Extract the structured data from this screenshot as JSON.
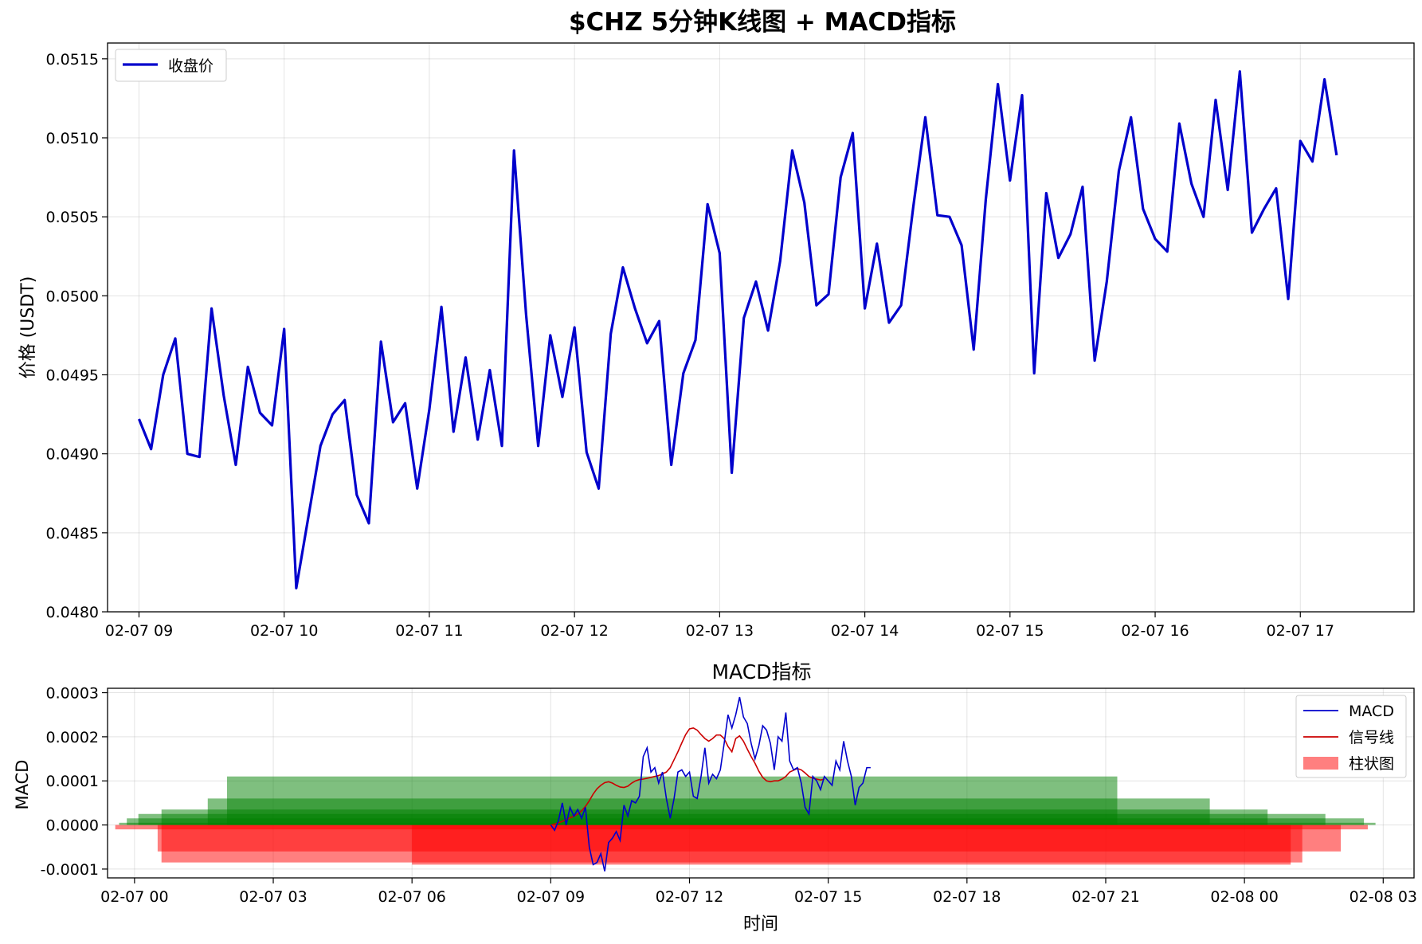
{
  "figure": {
    "title": "$CHZ 5分钟K线图 + MACD指标"
  },
  "chart_data": [
    {
      "type": "line",
      "title": "$CHZ 5分钟K线图 + MACD指标",
      "xlabel": "",
      "ylabel": "价格 (USDT)",
      "x_range": [
        "02-07 08:47",
        "02-07 17:47"
      ],
      "ylim": [
        0.048,
        0.0516
      ],
      "y_ticks": [
        "0.0480",
        "0.0485",
        "0.0490",
        "0.0495",
        "0.0500",
        "0.0505",
        "0.0510",
        "0.0515"
      ],
      "x_ticks": [
        "02-07 09",
        "02-07 10",
        "02-07 11",
        "02-07 12",
        "02-07 13",
        "02-07 14",
        "02-07 15",
        "02-07 16",
        "02-07 17"
      ],
      "grid": true,
      "legend_position": "top-left",
      "x_interval_minutes": 5,
      "x_start": "02-07 09:00",
      "series": [
        {
          "name": "收盘价",
          "color": "#0000cc",
          "values": [
            0.04922,
            0.04903,
            0.0495,
            0.04973,
            0.049,
            0.04898,
            0.04992,
            0.04937,
            0.04893,
            0.04955,
            0.04926,
            0.04918,
            0.04979,
            0.04815,
            0.0486,
            0.04905,
            0.04925,
            0.04934,
            0.04874,
            0.04856,
            0.04971,
            0.0492,
            0.04932,
            0.04878,
            0.04928,
            0.04993,
            0.04914,
            0.04961,
            0.04909,
            0.04953,
            0.04905,
            0.05092,
            0.04988,
            0.04905,
            0.04975,
            0.04936,
            0.0498,
            0.04901,
            0.04878,
            0.04976,
            0.05018,
            0.04992,
            0.0497,
            0.04984,
            0.04893,
            0.04951,
            0.04972,
            0.05058,
            0.05027,
            0.04888,
            0.04986,
            0.05009,
            0.04978,
            0.05022,
            0.05092,
            0.05059,
            0.04994,
            0.05001,
            0.05075,
            0.05103,
            0.04992,
            0.05033,
            0.04983,
            0.04994,
            0.05056,
            0.05113,
            0.05051,
            0.0505,
            0.05032,
            0.04966,
            0.05061,
            0.05134,
            0.05073,
            0.05127,
            0.04951,
            0.05065,
            0.05024,
            0.05039,
            0.05069,
            0.04959,
            0.05009,
            0.05079,
            0.05113,
            0.05055,
            0.05036,
            0.05028,
            0.05109,
            0.05071,
            0.0505,
            0.05124,
            0.05067,
            0.05142,
            0.0504,
            0.05055,
            0.05068,
            0.04998,
            0.05098,
            0.05085,
            0.05137,
            0.05089
          ]
        }
      ]
    },
    {
      "type": "line",
      "title": "MACD指标",
      "xlabel": "时间",
      "ylabel": "MACD",
      "x_range": [
        "02-06 23:25",
        "02-08 03:40"
      ],
      "ylim": [
        -0.00012,
        0.00031
      ],
      "y_ticks": [
        "-0.0001",
        "0.0000",
        "0.0001",
        "0.0002",
        "0.0003"
      ],
      "x_ticks": [
        "02-07 00",
        "02-07 03",
        "02-07 06",
        "02-07 09",
        "02-07 12",
        "02-07 15",
        "02-07 18",
        "02-07 21",
        "02-08 00",
        "02-08 03"
      ],
      "grid": true,
      "legend_position": "top-right",
      "x_interval_minutes": 5,
      "x_start": "02-07 09:00",
      "series": [
        {
          "name": "MACD",
          "color": "#0000cc",
          "values": [
            0.0,
            -1.2e-05,
            1e-05,
            5e-05,
            0.0,
            4e-05,
            2e-05,
            3.5e-05,
            1.5e-05,
            4e-05,
            -5e-05,
            -9e-05,
            -8.5e-05,
            -6.5e-05,
            -0.000105,
            -4e-05,
            -3e-05,
            -1.5e-05,
            -3.5e-05,
            4.5e-05,
            2e-05,
            5.5e-05,
            5e-05,
            6.5e-05,
            0.000155,
            0.000175,
            0.00012,
            0.00013,
            9.5e-05,
            0.00012,
            6e-05,
            1.5e-05,
            6e-05,
            0.00012,
            0.000125,
            0.00011,
            0.00012,
            6.5e-05,
            6e-05,
            0.00011,
            0.000175,
            9.5e-05,
            0.000115,
            0.000105,
            0.000125,
            0.000185,
            0.00025,
            0.00022,
            0.00025,
            0.00029,
            0.000245,
            0.00023,
            0.000185,
            0.00015,
            0.00018,
            0.000225,
            0.000215,
            0.000185,
            0.000125,
            0.0002,
            0.00019,
            0.000255,
            0.000145,
            0.000125,
            0.00013,
            9.5e-05,
            4e-05,
            2.5e-05,
            0.00011,
            0.0001,
            8e-05,
            0.00011,
            0.0001,
            9e-05,
            0.000145,
            0.000125,
            0.00019,
            0.000145,
            0.00011,
            4.5e-05,
            8.5e-05,
            9.5e-05,
            0.00013,
            0.00013
          ]
        },
        {
          "name": "信号线",
          "color": "#cc0000",
          "values": [
            0.0,
            2e-06,
            5e-06,
            8e-06,
            1.2e-05,
            1.6e-05,
            2e-05,
            2.5e-05,
            3.2e-05,
            4.2e-05,
            5.5e-05,
            7e-05,
            8.2e-05,
            9e-05,
            9.6e-05,
            9.8e-05,
            9.5e-05,
            9e-05,
            8.6e-05,
            8.5e-05,
            8.8e-05,
            9.5e-05,
            0.0001,
            0.000103,
            0.000104,
            0.000106,
            0.000108,
            0.00011,
            0.000112,
            0.000116,
            0.00012,
            0.00013,
            0.000148,
            0.000166,
            0.000186,
            0.000205,
            0.000218,
            0.00022,
            0.000215,
            0.000205,
            0.000196,
            0.00019,
            0.000196,
            0.000204,
            0.000204,
            0.000196,
            0.000178,
            0.000166,
            0.000196,
            0.000202,
            0.00019,
            0.000172,
            0.000155,
            0.00014,
            0.000122,
            0.000108,
            0.0001,
            9.8e-05,
            0.0001,
            0.0001,
            0.000104,
            0.00011,
            0.00012,
            0.000124,
            0.000128,
            0.000125,
            0.000118,
            0.00011,
            0.000106,
            0.000104,
            0.000102,
            0.000104
          ]
        },
        {
          "name": "柱状图",
          "color": "#ff0000",
          "positive_color": "#008000",
          "type": "bar",
          "positive_bars": [
            {
              "start": "02-06 23:40",
              "end": "02-08 02:50",
              "value": 5e-06
            },
            {
              "start": "02-06 23:50",
              "end": "02-08 02:35",
              "value": 1.5e-05
            },
            {
              "start": "02-07 00:05",
              "end": "02-08 01:45",
              "value": 2.5e-05
            },
            {
              "start": "02-07 00:35",
              "end": "02-08 00:30",
              "value": 3.5e-05
            },
            {
              "start": "02-07 01:35",
              "end": "02-07 23:15",
              "value": 6e-05
            },
            {
              "start": "02-07 02:00",
              "end": "02-07 21:15",
              "value": 0.00011
            }
          ],
          "negative_bars": [
            {
              "start": "02-06 23:35",
              "end": "02-08 02:40",
              "value": -1e-05
            },
            {
              "start": "02-07 00:30",
              "end": "02-08 02:05",
              "value": -6e-05
            },
            {
              "start": "02-07 00:35",
              "end": "02-08 01:15",
              "value": -8.5e-05
            },
            {
              "start": "02-07 06:00",
              "end": "02-08 01:00",
              "value": -9e-05
            }
          ]
        }
      ]
    }
  ]
}
